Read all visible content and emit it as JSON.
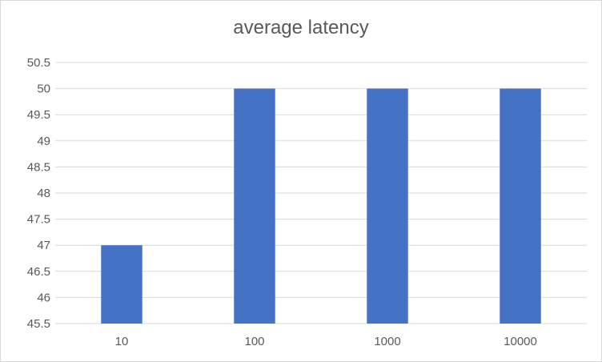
{
  "chart_data": {
    "type": "bar",
    "title": "average latency",
    "xlabel": "",
    "ylabel": "",
    "categories": [
      "10",
      "100",
      "1000",
      "10000"
    ],
    "series": [
      {
        "values": [
          47,
          50,
          50,
          50
        ]
      }
    ],
    "ylim": [
      45.5,
      50.5
    ],
    "ytick_step": 0.5,
    "yticks": [
      "45.5",
      "46",
      "46.5",
      "47",
      "47.5",
      "48",
      "48.5",
      "49",
      "49.5",
      "50",
      "50.5"
    ],
    "grid": true,
    "legend": "none",
    "bar_color": "#4472c4",
    "gridline_color": "#d9d9d9"
  }
}
